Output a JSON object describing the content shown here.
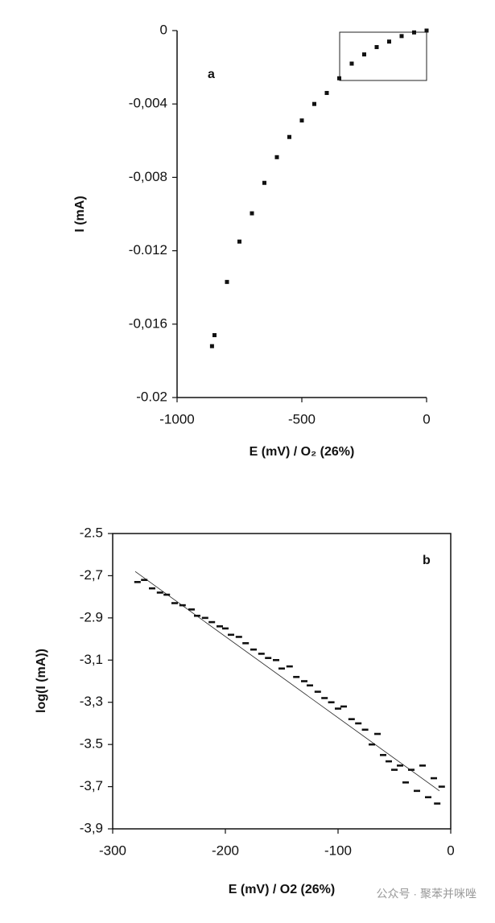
{
  "chart_data": [
    {
      "type": "scatter",
      "annotation": "a",
      "xlabel": "E (mV) / O₂ (26%)",
      "ylabel": "I (mA)",
      "color": "#111111",
      "x": [
        -860,
        -850,
        -800,
        -750,
        -700,
        -650,
        -600,
        -550,
        -500,
        -450,
        -400,
        -350,
        -300,
        -250,
        -200,
        -150,
        -100,
        -50,
        0
      ],
      "values": [
        -0.0172,
        -0.0166,
        -0.0137,
        -0.0115,
        -0.00996,
        -0.0083,
        -0.0069,
        -0.0058,
        -0.0049,
        -0.004,
        -0.0034,
        -0.0026,
        -0.0018,
        -0.0013,
        -0.0009,
        -0.0006,
        -0.0003,
        -0.0001,
        0
      ],
      "xlim": [
        -1000,
        0
      ],
      "xticks": [
        -1000,
        -500,
        0
      ],
      "ylim": [
        -0.02,
        0
      ],
      "yticks": [
        {
          "value": -0.02,
          "label": "-0.02"
        },
        {
          "value": -0.016,
          "label": "-0,016"
        },
        -0.012,
        {
          "value": -0.008,
          "label": "-0,008"
        },
        {
          "value": -0.004,
          "label": "-0,004"
        },
        0
      ]
    },
    {
      "type": "scatter",
      "annotation": "b",
      "xlabel": "E (mV) / O2 (26%)",
      "ylabel": "log(I (mA))",
      "color": "#111111",
      "x": [
        -278,
        -272,
        -265,
        -258,
        -252,
        -245,
        -238,
        -230,
        -225,
        -218,
        -212,
        -205,
        -200,
        -195,
        -188,
        -182,
        -175,
        -168,
        -162,
        -155,
        -150,
        -143,
        -137,
        -130,
        -125,
        -118,
        -112,
        -106,
        -100,
        -95,
        -88,
        -82,
        -76,
        -70,
        -65,
        -60,
        -55,
        -50,
        -45,
        -40,
        -35,
        -30,
        -25,
        -20,
        -15,
        -12,
        -8
      ],
      "values": [
        -2.73,
        -2.72,
        -2.76,
        -2.78,
        -2.79,
        -2.83,
        -2.84,
        -2.86,
        -2.89,
        -2.9,
        -2.92,
        -2.94,
        -2.95,
        -2.98,
        -2.99,
        -3.02,
        -3.05,
        -3.07,
        -3.09,
        -3.1,
        -3.14,
        -3.13,
        -3.18,
        -3.2,
        -3.22,
        -3.25,
        -3.28,
        -3.3,
        -3.33,
        -3.32,
        -3.38,
        -3.4,
        -3.43,
        -3.5,
        -3.45,
        -3.55,
        -3.58,
        -3.62,
        -3.6,
        -3.68,
        -3.62,
        -3.72,
        -3.6,
        -3.75,
        -3.66,
        -3.78,
        -3.7
      ],
      "fit": {
        "x": [
          -280,
          -10
        ],
        "values": [
          -2.68,
          -3.72
        ]
      },
      "xlim": [
        -300,
        0
      ],
      "xticks": [
        -300,
        -200,
        -100,
        0
      ],
      "ylim": [
        -3.9,
        -2.5
      ],
      "yticks": [
        {
          "value": -3.9,
          "label": "-3,9"
        },
        {
          "value": -3.7,
          "label": "-3,7"
        },
        -3.5,
        {
          "value": -3.3,
          "label": "-3,3"
        },
        {
          "value": -3.1,
          "label": "-3,1"
        },
        -2.9,
        {
          "value": -2.7,
          "label": "-2,7"
        },
        -2.5
      ]
    }
  ],
  "watermark": "公众号 · 聚苯并咪唑"
}
